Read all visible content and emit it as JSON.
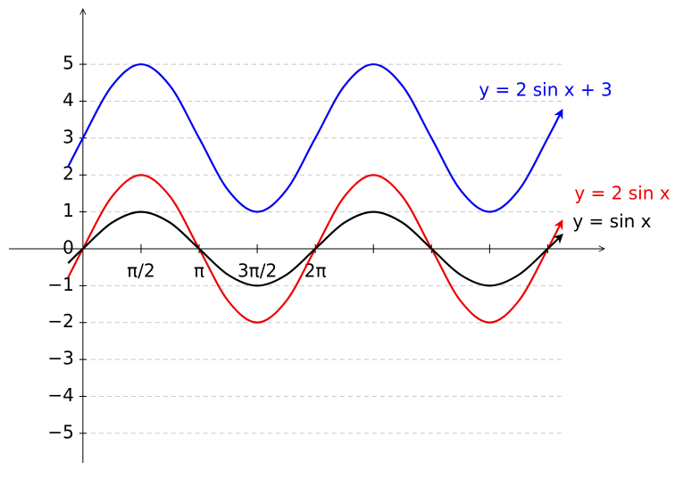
{
  "chart_data": {
    "type": "line",
    "x": [
      -0.4,
      0,
      0.7854,
      1.5708,
      2.3562,
      3.1416,
      3.927,
      4.7124,
      5.4978,
      6.2832,
      7.0686,
      7.854,
      8.6394,
      9.4248,
      10.2102,
      10.9956,
      11.781,
      12.5664,
      12.95
    ],
    "series": [
      {
        "name": "y = 2 sin x + 3",
        "color": "#0000ee",
        "values": [
          2.221,
          3,
          4.414,
          5,
          4.414,
          3,
          1.586,
          1,
          1.586,
          3,
          4.414,
          5,
          4.414,
          3,
          1.586,
          1,
          1.586,
          3,
          3.748
        ]
      },
      {
        "name": "y = 2 sin x",
        "color": "#ee0000",
        "values": [
          -0.779,
          0,
          1.414,
          2,
          1.414,
          0,
          -1.414,
          -2,
          -1.414,
          0,
          1.414,
          2,
          1.414,
          0,
          -1.414,
          -2,
          -1.414,
          0,
          0.748
        ]
      },
      {
        "name": "y = sin x",
        "color": "#000000",
        "values": [
          -0.389,
          0,
          0.707,
          1,
          0.707,
          0,
          -0.707,
          -1,
          -0.707,
          0,
          0.707,
          1,
          0.707,
          0,
          -0.707,
          -1,
          -0.707,
          0,
          0.374
        ]
      }
    ],
    "xlim": [
      -2,
      14.1
    ],
    "ylim": [
      -5.8,
      6.5
    ],
    "xticks": [
      {
        "value": 1.5708,
        "label": "π/2"
      },
      {
        "value": 3.1416,
        "label": "π"
      },
      {
        "value": 4.7124,
        "label": "3π/2"
      },
      {
        "value": 6.2832,
        "label": "2π"
      },
      {
        "value": 7.854,
        "label": null
      },
      {
        "value": 9.4248,
        "label": null
      },
      {
        "value": 10.9956,
        "label": null
      },
      {
        "value": 12.5664,
        "label": null
      }
    ],
    "yticks": [
      {
        "value": -5,
        "label": "−5"
      },
      {
        "value": -4,
        "label": "−4"
      },
      {
        "value": -3,
        "label": "−3"
      },
      {
        "value": -2,
        "label": "−2"
      },
      {
        "value": -1,
        "label": "−1"
      },
      0,
      1,
      2,
      3,
      4,
      5
    ],
    "grid": true
  }
}
